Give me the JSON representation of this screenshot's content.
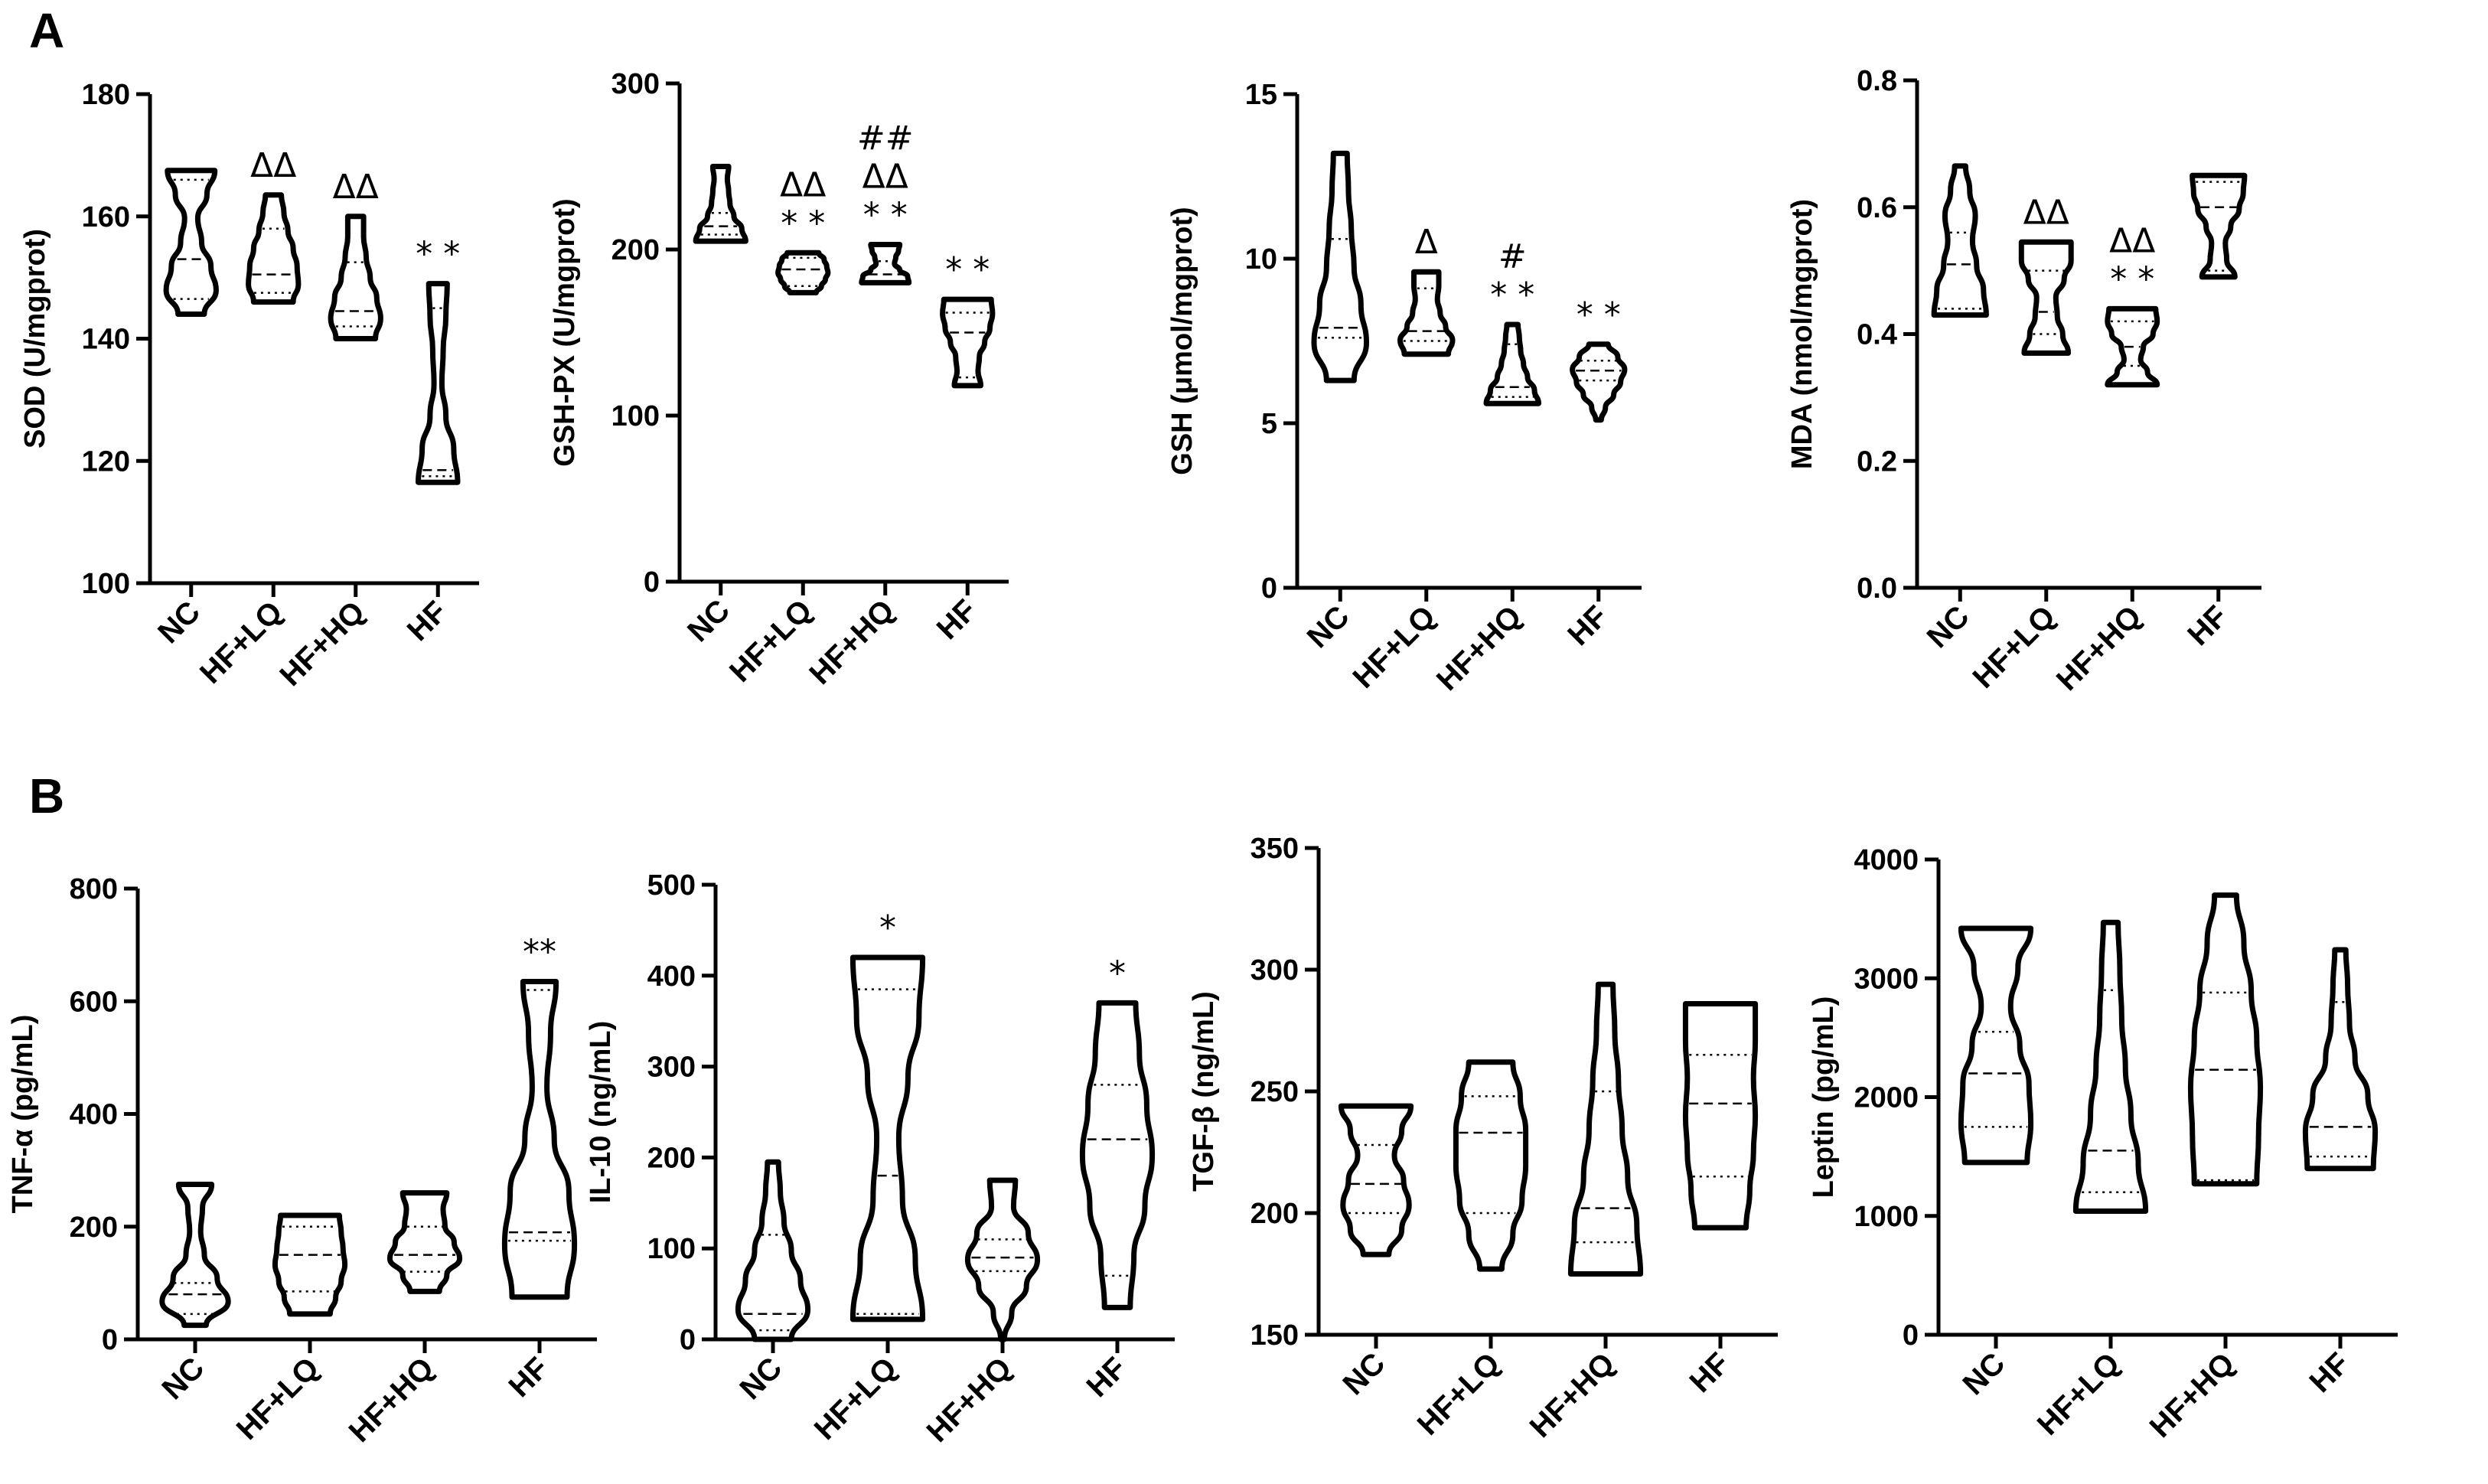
{
  "figure": {
    "panel_labels": [
      "A",
      "B"
    ]
  },
  "chart_data": [
    {
      "type": "violin",
      "panel": "A",
      "ylabel": "SOD (U/mgprot)",
      "categories": [
        "NC",
        "HF+LQ",
        "HF+HQ",
        "HF"
      ],
      "ylim": [
        100,
        180
      ],
      "yticks": [
        100,
        120,
        140,
        160,
        180
      ],
      "ytick_labels": [
        "100",
        "120",
        "140",
        "160",
        "180"
      ],
      "series": [
        {
          "name": "NC",
          "min": 144,
          "max": 167.5,
          "q1": 146.5,
          "median": 153,
          "q3": 166,
          "widths": [
            0.5,
            0.95,
            0.75,
            0.4,
            0.25,
            0.6,
            0.9
          ],
          "annotation": []
        },
        {
          "name": "HF+LQ",
          "min": 146,
          "max": 163.5,
          "q1": 147.5,
          "median": 150.5,
          "q3": 158,
          "widths": [
            0.75,
            0.95,
            0.9,
            0.75,
            0.55,
            0.4,
            0.3
          ],
          "annotation": [
            "ΔΔ"
          ]
        },
        {
          "name": "HF+HQ",
          "min": 140,
          "max": 160,
          "q1": 142,
          "median": 144.5,
          "q3": 152.5,
          "widths": [
            0.75,
            0.95,
            0.8,
            0.55,
            0.4,
            0.3,
            0.3
          ],
          "annotation": [
            "ΔΔ"
          ]
        },
        {
          "name": "HF",
          "min": 116.5,
          "max": 149,
          "q1": 117.5,
          "median": 118.5,
          "q3": 145,
          "widths": [
            0.75,
            0.6,
            0.3,
            0.15,
            0.2,
            0.3,
            0.35
          ],
          "annotation": [
            "* *"
          ]
        }
      ]
    },
    {
      "type": "violin",
      "panel": "A",
      "ylabel": "GSH-PX (U/mgprot)",
      "categories": [
        "NC",
        "HF+LQ",
        "HF+HQ",
        "HF"
      ],
      "ylim": [
        0,
        300
      ],
      "yticks": [
        0,
        100,
        200,
        300
      ],
      "ytick_labels": [
        "0",
        "100",
        "200",
        "300"
      ],
      "series": [
        {
          "name": "NC",
          "min": 205,
          "max": 250,
          "q1": 209,
          "median": 214,
          "q3": 222,
          "widths": [
            0.95,
            0.8,
            0.5,
            0.35,
            0.3,
            0.25,
            0.3
          ],
          "annotation": []
        },
        {
          "name": "HF+LQ",
          "min": 174,
          "max": 198,
          "q1": 178,
          "median": 188,
          "q3": 195,
          "widths": [
            0.5,
            0.7,
            0.85,
            0.95,
            0.9,
            0.8,
            0.6
          ],
          "annotation": [
            "* *",
            "ΔΔ"
          ]
        },
        {
          "name": "HF+HQ",
          "min": 180,
          "max": 203,
          "q1": 181,
          "median": 185,
          "q3": 193,
          "widths": [
            0.9,
            0.85,
            0.55,
            0.35,
            0.4,
            0.5,
            0.55
          ],
          "annotation": [
            "* *",
            "ΔΔ",
            "##"
          ]
        },
        {
          "name": "HF",
          "min": 118,
          "max": 170,
          "q1": 123,
          "median": 150,
          "q3": 162,
          "widths": [
            0.5,
            0.4,
            0.45,
            0.65,
            0.85,
            0.95,
            0.9
          ],
          "annotation": [
            "* *"
          ]
        }
      ]
    },
    {
      "type": "violin",
      "panel": "A",
      "ylabel": "GSH (μmol/mgprot)",
      "categories": [
        "NC",
        "HF+LQ",
        "HF+HQ",
        "HF"
      ],
      "ylim": [
        0,
        15
      ],
      "yticks": [
        0,
        5,
        10,
        15
      ],
      "ytick_labels": [
        "0",
        "5",
        "10",
        "15"
      ],
      "series": [
        {
          "name": "NC",
          "min": 6.3,
          "max": 13.2,
          "q1": 7.6,
          "median": 7.9,
          "q3": 10.6,
          "widths": [
            0.5,
            0.95,
            0.75,
            0.5,
            0.4,
            0.3,
            0.25
          ],
          "annotation": []
        },
        {
          "name": "HF+LQ",
          "min": 7.1,
          "max": 9.6,
          "q1": 7.5,
          "median": 7.8,
          "q3": 9.1,
          "widths": [
            0.8,
            0.95,
            0.7,
            0.5,
            0.4,
            0.45,
            0.45
          ],
          "annotation": [
            "Δ"
          ]
        },
        {
          "name": "HF+HQ",
          "min": 5.6,
          "max": 8.0,
          "q1": 5.8,
          "median": 6.1,
          "q3": 7.4,
          "widths": [
            0.95,
            0.8,
            0.55,
            0.4,
            0.3,
            0.25,
            0.2
          ],
          "annotation": [
            "* *",
            "#"
          ]
        },
        {
          "name": "HF",
          "min": 5.1,
          "max": 7.4,
          "q1": 6.3,
          "median": 6.6,
          "q3": 6.9,
          "widths": [
            0.1,
            0.25,
            0.55,
            0.8,
            0.95,
            0.7,
            0.35
          ],
          "annotation": [
            "* *"
          ]
        }
      ]
    },
    {
      "type": "violin",
      "panel": "A",
      "ylabel": "MDA (nmol/mgprot)",
      "categories": [
        "NC",
        "HF+LQ",
        "HF+HQ",
        "HF"
      ],
      "ylim": [
        0,
        0.8
      ],
      "yticks": [
        0,
        0.2,
        0.4,
        0.6,
        0.8
      ],
      "ytick_labels": [
        "0.0",
        "0.2",
        "0.4",
        "0.6",
        "0.8"
      ],
      "series": [
        {
          "name": "NC",
          "min": 0.43,
          "max": 0.665,
          "q1": 0.44,
          "median": 0.51,
          "q3": 0.56,
          "widths": [
            0.95,
            0.85,
            0.6,
            0.45,
            0.55,
            0.35,
            0.2
          ],
          "annotation": []
        },
        {
          "name": "HF+LQ",
          "min": 0.37,
          "max": 0.545,
          "q1": 0.4,
          "median": 0.435,
          "q3": 0.5,
          "widths": [
            0.8,
            0.6,
            0.4,
            0.35,
            0.65,
            0.9,
            0.9
          ],
          "annotation": [
            "ΔΔ"
          ]
        },
        {
          "name": "HF+HQ",
          "min": 0.32,
          "max": 0.44,
          "q1": 0.35,
          "median": 0.38,
          "q3": 0.42,
          "widths": [
            0.9,
            0.55,
            0.3,
            0.4,
            0.75,
            0.9,
            0.85
          ],
          "annotation": [
            "* *",
            "ΔΔ"
          ]
        },
        {
          "name": "HF",
          "min": 0.49,
          "max": 0.65,
          "q1": 0.5,
          "median": 0.6,
          "q3": 0.64,
          "widths": [
            0.6,
            0.3,
            0.25,
            0.45,
            0.75,
            0.9,
            0.95
          ],
          "annotation": []
        }
      ]
    },
    {
      "type": "violin",
      "panel": "B",
      "ylabel": "TNF-α (pg/mL)",
      "categories": [
        "NC",
        "HF+LQ",
        "HF+HQ",
        "HF"
      ],
      "ylim": [
        0,
        800
      ],
      "yticks": [
        0,
        200,
        400,
        600,
        800
      ],
      "ytick_labels": [
        "0",
        "200",
        "400",
        "600",
        "800"
      ],
      "series": [
        {
          "name": "NC",
          "min": 25,
          "max": 275,
          "q1": 45,
          "median": 80,
          "q3": 100,
          "widths": [
            0.3,
            0.9,
            0.6,
            0.25,
            0.15,
            0.2,
            0.45
          ],
          "annotation": []
        },
        {
          "name": "HF+LQ",
          "min": 45,
          "max": 220,
          "q1": 85,
          "median": 150,
          "q3": 200,
          "widths": [
            0.55,
            0.7,
            0.85,
            0.95,
            0.9,
            0.85,
            0.8
          ],
          "annotation": []
        },
        {
          "name": "HF+HQ",
          "min": 85,
          "max": 260,
          "q1": 120,
          "median": 150,
          "q3": 200,
          "widths": [
            0.4,
            0.6,
            0.95,
            0.8,
            0.55,
            0.5,
            0.6
          ],
          "annotation": []
        },
        {
          "name": "HF",
          "min": 75,
          "max": 635,
          "q1": 175,
          "median": 190,
          "q3": 620,
          "widths": [
            0.75,
            0.95,
            0.8,
            0.4,
            0.2,
            0.3,
            0.45
          ],
          "annotation": [
            "**"
          ]
        }
      ]
    },
    {
      "type": "violin",
      "panel": "B",
      "ylabel": "IL-10 (ng/mL)",
      "categories": [
        "NC",
        "HF+LQ",
        "HF+HQ",
        "HF"
      ],
      "ylim": [
        0,
        500
      ],
      "yticks": [
        0,
        100,
        200,
        300,
        400,
        500
      ],
      "ytick_labels": [
        "0",
        "100",
        "200",
        "300",
        "400",
        "500"
      ],
      "series": [
        {
          "name": "NC",
          "min": 0,
          "max": 195,
          "q1": 10,
          "median": 28,
          "q3": 115,
          "widths": [
            0.5,
            0.95,
            0.75,
            0.5,
            0.3,
            0.2,
            0.15
          ],
          "annotation": []
        },
        {
          "name": "HF+LQ",
          "min": 22,
          "max": 420,
          "q1": 28,
          "median": 180,
          "q3": 385,
          "widths": [
            0.95,
            0.75,
            0.4,
            0.3,
            0.55,
            0.85,
            0.95
          ],
          "annotation": [
            "*"
          ]
        },
        {
          "name": "HF+HQ",
          "min": 0,
          "max": 175,
          "q1": 75,
          "median": 90,
          "q3": 110,
          "widths": [
            0.05,
            0.25,
            0.65,
            0.95,
            0.7,
            0.3,
            0.35
          ],
          "annotation": []
        },
        {
          "name": "HF",
          "min": 35,
          "max": 370,
          "q1": 70,
          "median": 220,
          "q3": 280,
          "widths": [
            0.35,
            0.45,
            0.75,
            0.95,
            0.8,
            0.6,
            0.5
          ],
          "annotation": [
            "*"
          ]
        }
      ]
    },
    {
      "type": "violin",
      "panel": "B",
      "ylabel": "TGF-β (ng/mL)",
      "categories": [
        "NC",
        "HF+LQ",
        "HF+HQ",
        "HF"
      ],
      "ylim": [
        150,
        350
      ],
      "yticks": [
        150,
        200,
        250,
        300,
        350
      ],
      "ytick_labels": [
        "150",
        "200",
        "250",
        "300",
        "350"
      ],
      "series": [
        {
          "name": "NC",
          "min": 183,
          "max": 244,
          "q1": 200,
          "median": 212,
          "q3": 228,
          "widths": [
            0.35,
            0.7,
            0.9,
            0.75,
            0.5,
            0.7,
            0.95
          ],
          "annotation": []
        },
        {
          "name": "HF+LQ",
          "min": 177,
          "max": 262,
          "q1": 200,
          "median": 233,
          "q3": 248,
          "widths": [
            0.3,
            0.6,
            0.85,
            0.95,
            0.95,
            0.8,
            0.6
          ],
          "annotation": []
        },
        {
          "name": "HF+HQ",
          "min": 175,
          "max": 294,
          "q1": 188,
          "median": 202,
          "q3": 250,
          "widths": [
            0.95,
            0.85,
            0.6,
            0.45,
            0.35,
            0.25,
            0.2
          ],
          "annotation": []
        },
        {
          "name": "HF",
          "min": 194,
          "max": 286,
          "q1": 215,
          "median": 245,
          "q3": 265,
          "widths": [
            0.7,
            0.8,
            0.9,
            0.95,
            0.9,
            0.95,
            0.95
          ],
          "annotation": []
        }
      ]
    },
    {
      "type": "violin",
      "panel": "B",
      "ylabel": "Leptin (pg/mL)",
      "categories": [
        "NC",
        "HF+LQ",
        "HF+HQ",
        "HF"
      ],
      "ylim": [
        0,
        4000
      ],
      "yticks": [
        0,
        1000,
        2000,
        3000,
        4000
      ],
      "ytick_labels": [
        "0",
        "1000",
        "2000",
        "3000",
        "4000"
      ],
      "series": [
        {
          "name": "NC",
          "min": 1450,
          "max": 3420,
          "q1": 1750,
          "median": 2200,
          "q3": 2550,
          "widths": [
            0.85,
            0.95,
            0.9,
            0.65,
            0.4,
            0.6,
            0.95
          ],
          "annotation": []
        },
        {
          "name": "HF+LQ",
          "min": 1040,
          "max": 3470,
          "q1": 1200,
          "median": 1550,
          "q3": 2900,
          "widths": [
            0.95,
            0.75,
            0.55,
            0.4,
            0.3,
            0.25,
            0.2
          ],
          "annotation": []
        },
        {
          "name": "HF+HQ",
          "min": 1270,
          "max": 3700,
          "q1": 1300,
          "median": 2230,
          "q3": 2880,
          "widths": [
            0.85,
            0.9,
            0.95,
            0.85,
            0.7,
            0.5,
            0.3
          ],
          "annotation": []
        },
        {
          "name": "HF",
          "min": 1400,
          "max": 3240,
          "q1": 1500,
          "median": 1750,
          "q3": 2800,
          "widths": [
            0.9,
            0.95,
            0.75,
            0.4,
            0.25,
            0.2,
            0.15
          ],
          "annotation": []
        }
      ]
    }
  ]
}
